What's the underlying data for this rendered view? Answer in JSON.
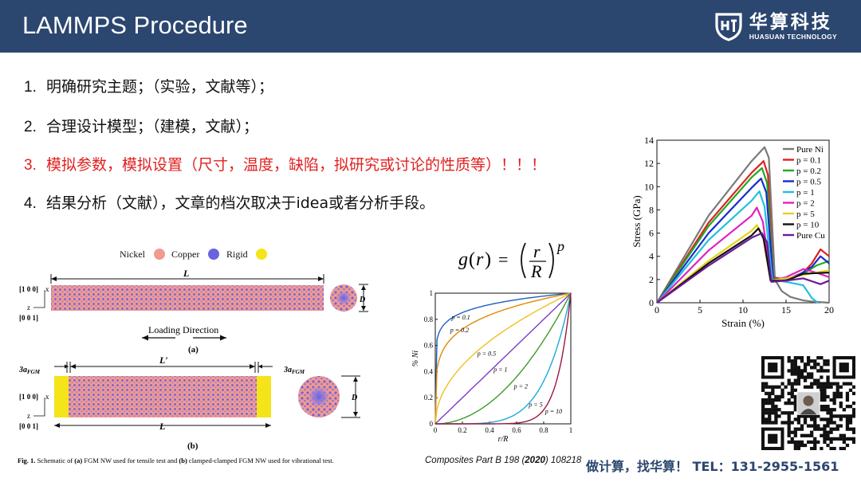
{
  "header": {
    "title": "LAMMPS Procedure",
    "brand_cn": "华算科技",
    "brand_en": "HUASUAN TECHNOLOGY"
  },
  "steps": [
    {
      "num": "1.",
      "text": "明确研究主题；（实验，文献等）；",
      "highlight": false
    },
    {
      "num": "2.",
      "text": "合理设计模型；（建模，文献）；",
      "highlight": false
    },
    {
      "num": "3.",
      "text": "模拟参数，模拟设置（尺寸，温度，缺陷，拟研究或讨论的性质等）！！！",
      "highlight": true
    },
    {
      "num": "4.",
      "text": "结果分析（文献），文章的档次取决于idea或者分析手段。",
      "highlight": false
    }
  ],
  "fig1": {
    "legend": [
      "Nickel",
      "Copper",
      "Rigid"
    ],
    "legend_colors": [
      "#f29a90",
      "#6a63e0",
      "#f5e41a"
    ],
    "L": "L",
    "D": "D",
    "axis_x": "[1 0 0]",
    "axis_z": "[0 0 1]",
    "x_lbl": "x",
    "z_lbl": "z",
    "loading": "Loading Direction",
    "a": "(a)",
    "b": "(b)",
    "L_prime": "L′",
    "three_a": "3a",
    "fgm": "FGM",
    "caption_label": "Fig. 1.",
    "caption_pre": " Schematic of ",
    "cap_a": "(a)",
    "caption_mid": " FGM NW used for tensile test and ",
    "cap_b": "(b)",
    "caption_post": " clamped-clamped FGM NW used for vibrational test."
  },
  "formula": {
    "g": "g",
    "r": "r",
    "R": "R",
    "p": "p",
    "eq": "="
  },
  "chart_data": [
    {
      "type": "line",
      "x": [
        0,
        0.1,
        0.2,
        0.3,
        0.4,
        0.5,
        0.6,
        0.7,
        0.8,
        0.9,
        1
      ],
      "series": [
        {
          "name": "p = 0.1",
          "values": [
            0,
            0.794,
            0.851,
            0.887,
            0.912,
            0.933,
            0.95,
            0.965,
            0.978,
            0.99,
            1
          ]
        },
        {
          "name": "p = 0.2",
          "values": [
            0,
            0.631,
            0.725,
            0.786,
            0.833,
            0.871,
            0.903,
            0.931,
            0.956,
            0.979,
            1
          ]
        },
        {
          "name": "p = 0.5",
          "values": [
            0,
            0.316,
            0.447,
            0.548,
            0.632,
            0.707,
            0.775,
            0.837,
            0.894,
            0.949,
            1
          ]
        },
        {
          "name": "p = 1",
          "values": [
            0,
            0.1,
            0.2,
            0.3,
            0.4,
            0.5,
            0.6,
            0.7,
            0.8,
            0.9,
            1
          ]
        },
        {
          "name": "p = 2",
          "values": [
            0,
            0.01,
            0.04,
            0.09,
            0.16,
            0.25,
            0.36,
            0.49,
            0.64,
            0.81,
            1
          ]
        },
        {
          "name": "p = 5",
          "values": [
            0,
            0.0,
            0.0003,
            0.0024,
            0.0102,
            0.031,
            0.078,
            0.168,
            0.328,
            0.59,
            1
          ]
        },
        {
          "name": "p = 10",
          "values": [
            0,
            0,
            0,
            0,
            0.0001,
            0.001,
            0.006,
            0.028,
            0.107,
            0.349,
            1
          ]
        }
      ],
      "colors": [
        "#1f5fbf",
        "#e08a00",
        "#f0c020",
        "#7a3cc8",
        "#3f9a2a",
        "#1aaad8",
        "#9a1a3a"
      ],
      "xlabel": "r/R",
      "ylabel": "% Ni",
      "xlim": [
        0,
        1
      ],
      "ylim": [
        0,
        1
      ],
      "xticks": [
        "0",
        "0.2",
        "0.4",
        "0.6",
        "0.8",
        "1"
      ],
      "yticks": [
        "0",
        "0.2",
        "0.4",
        "0.6",
        "0.8",
        "1"
      ]
    },
    {
      "type": "line",
      "series": [
        {
          "name": "Pure Ni",
          "color": "#7a7a7a",
          "points": [
            [
              0,
              0
            ],
            [
              6,
              7.5
            ],
            [
              11,
              12.2
            ],
            [
              12.5,
              13.4
            ],
            [
              13,
              12.5
            ],
            [
              13.7,
              2
            ],
            [
              14.5,
              1
            ],
            [
              15.5,
              0.5
            ],
            [
              16,
              0.4
            ],
            [
              17,
              0.2
            ],
            [
              18,
              0.1
            ],
            [
              20,
              0
            ]
          ]
        },
        {
          "name": "p = 0.1",
          "color": "#e02020",
          "points": [
            [
              0,
              0
            ],
            [
              6,
              6.9
            ],
            [
              11,
              11.2
            ],
            [
              12.4,
              12.2
            ],
            [
              12.9,
              11
            ],
            [
              13.5,
              2.2
            ],
            [
              15,
              2
            ],
            [
              17,
              2.6
            ],
            [
              18,
              3.4
            ],
            [
              19,
              4.6
            ],
            [
              20,
              4
            ]
          ]
        },
        {
          "name": "p = 0.2",
          "color": "#22aa22",
          "points": [
            [
              0,
              0
            ],
            [
              6,
              6.6
            ],
            [
              11,
              10.8
            ],
            [
              12.2,
              11.6
            ],
            [
              12.8,
              10.3
            ],
            [
              13.5,
              2.1
            ],
            [
              15,
              2
            ],
            [
              17,
              2.5
            ],
            [
              18.5,
              3.2
            ],
            [
              20,
              3.6
            ]
          ]
        },
        {
          "name": "p = 0.5",
          "color": "#1a2ad0",
          "points": [
            [
              0,
              0
            ],
            [
              6,
              6
            ],
            [
              11,
              9.9
            ],
            [
              12.1,
              10.7
            ],
            [
              12.7,
              9.5
            ],
            [
              13.5,
              2
            ],
            [
              15,
              2
            ],
            [
              16.5,
              2.4
            ],
            [
              18,
              3.1
            ],
            [
              19,
              4
            ],
            [
              20,
              3.4
            ]
          ]
        },
        {
          "name": "p = 1",
          "color": "#22c0dd",
          "points": [
            [
              0,
              0
            ],
            [
              6,
              5.4
            ],
            [
              11,
              8.8
            ],
            [
              11.9,
              9.6
            ],
            [
              12.5,
              8.3
            ],
            [
              13.4,
              2
            ],
            [
              15,
              1.8
            ],
            [
              17,
              1.5
            ],
            [
              18,
              0.4
            ],
            [
              18.7,
              0
            ]
          ]
        },
        {
          "name": "p = 2",
          "color": "#e020c0",
          "points": [
            [
              0,
              0
            ],
            [
              6,
              4.5
            ],
            [
              11,
              7.5
            ],
            [
              11.6,
              8.2
            ],
            [
              12.3,
              7
            ],
            [
              13.3,
              1.9
            ],
            [
              15,
              2.2
            ],
            [
              17,
              2.9
            ],
            [
              18.5,
              2.6
            ],
            [
              20,
              2.2
            ]
          ]
        },
        {
          "name": "p = 5",
          "color": "#e6d21a",
          "points": [
            [
              0,
              0
            ],
            [
              6,
              3.6
            ],
            [
              11,
              6.2
            ],
            [
              11.6,
              6.7
            ],
            [
              12.3,
              5.8
            ],
            [
              13.2,
              1.9
            ],
            [
              15,
              2.1
            ],
            [
              17,
              2.4
            ],
            [
              20,
              2.8
            ]
          ]
        },
        {
          "name": "p = 10",
          "color": "#111111",
          "points": [
            [
              0,
              0
            ],
            [
              6,
              3.4
            ],
            [
              11,
              5.8
            ],
            [
              11.8,
              6.4
            ],
            [
              12.4,
              5.5
            ],
            [
              13.2,
              1.9
            ],
            [
              15,
              1.9
            ],
            [
              17,
              2.5
            ],
            [
              20,
              2.6
            ]
          ]
        },
        {
          "name": "Pure Cu",
          "color": "#6a1a9a",
          "points": [
            [
              0,
              0
            ],
            [
              6,
              3.2
            ],
            [
              11,
              5.6
            ],
            [
              12.2,
              6
            ],
            [
              12.8,
              5.2
            ],
            [
              13.3,
              1.8
            ],
            [
              15,
              1.9
            ],
            [
              17,
              2.1
            ],
            [
              19,
              1.6
            ],
            [
              20,
              1.9
            ]
          ]
        }
      ],
      "xlabel": "Strain (%)",
      "ylabel": "Stress (GPa)",
      "xlim": [
        0,
        20
      ],
      "ylim": [
        0,
        14
      ],
      "xticks": [
        "0",
        "5",
        "10",
        "15",
        "20"
      ],
      "yticks": [
        "0",
        "2",
        "4",
        "6",
        "8",
        "10",
        "12",
        "14"
      ],
      "legend": "top-right"
    }
  ],
  "fig2_labels": [
    "p = 0.1",
    "p = 0.2",
    "p = 0.5",
    "p = 1",
    "p = 2",
    "p = 5",
    "p = 10"
  ],
  "citation": {
    "text": "Composites Part B 198 (",
    "year": "2020",
    "tail": ") 108218"
  },
  "contact": "做计算，找华算！ TEL：131-2955-1561"
}
